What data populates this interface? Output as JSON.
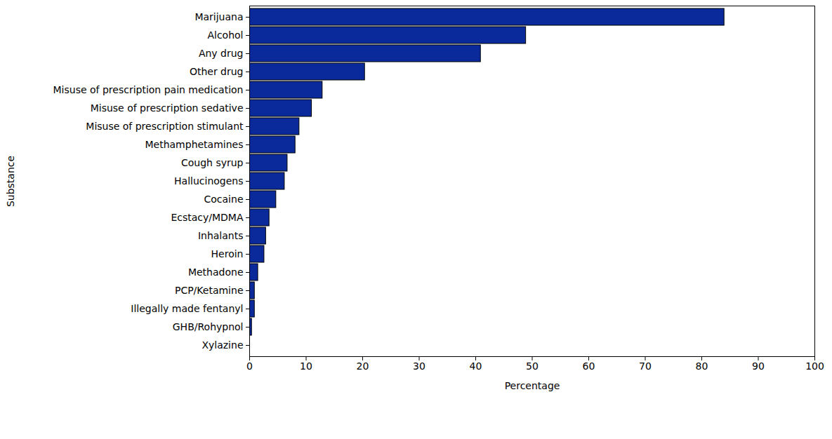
{
  "chart_data": {
    "type": "bar",
    "orientation": "horizontal",
    "categories": [
      "Marijuana",
      "Alcohol",
      "Any drug",
      "Other drug",
      "Misuse of prescription pain medication",
      "Misuse of prescription sedative",
      "Misuse of prescription stimulant",
      "Methamphetamines",
      "Cough syrup",
      "Hallucinogens",
      "Cocaine",
      "Ecstacy/MDMA",
      "Inhalants",
      "Heroin",
      "Methadone",
      "PCP/Ketamine",
      "Illegally made fentanyl",
      "GHB/Rohypnol",
      "Xylazine"
    ],
    "values": [
      84,
      48.9,
      40.9,
      20.4,
      12.9,
      11.0,
      8.8,
      8.1,
      6.7,
      6.2,
      4.7,
      3.5,
      2.9,
      2.6,
      1.5,
      0.9,
      0.9,
      0.4,
      0
    ],
    "color": "#0a2a9c",
    "x_label": "Percentage",
    "y_label": "Substance",
    "xlim": [
      0,
      100
    ],
    "xticks": [
      0,
      10,
      20,
      30,
      40,
      50,
      60,
      70,
      80,
      90,
      100
    ],
    "grid": false,
    "data_labels": false
  }
}
